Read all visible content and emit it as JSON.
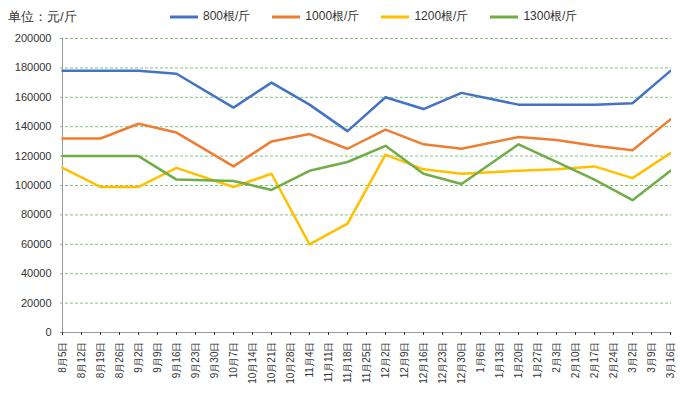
{
  "chart_data": {
    "type": "line",
    "ylabel": "单位：元/斤",
    "x": [
      "8月5日",
      "8月19日",
      "9月2日",
      "9月16日",
      "10月7日",
      "10月21日",
      "11月4日",
      "11月18日",
      "12月2日",
      "12月16日",
      "12月30日",
      "1月20日",
      "2月3日",
      "2月17日",
      "3月2日",
      "3月16日"
    ],
    "series": [
      {
        "name": "800根/斤",
        "color": "#4472c4",
        "values": [
          178000,
          178000,
          178000,
          176000,
          153000,
          170000,
          155000,
          137000,
          160000,
          152000,
          163000,
          155000,
          155000,
          155000,
          156000,
          178000
        ]
      },
      {
        "name": "1000根/斤",
        "color": "#ed7d31",
        "values": [
          132000,
          132000,
          142000,
          136000,
          113000,
          130000,
          135000,
          125000,
          138000,
          128000,
          125000,
          133000,
          131000,
          127000,
          124000,
          145000
        ]
      },
      {
        "name": "1200根/斤",
        "color": "#ffc000",
        "values": [
          112000,
          99000,
          99000,
          112000,
          99000,
          108000,
          60000,
          74000,
          121000,
          111000,
          108000,
          110000,
          111000,
          113000,
          105000,
          122000
        ]
      },
      {
        "name": "1300根/斤",
        "color": "#70ad47",
        "values": [
          120000,
          120000,
          120000,
          104000,
          103000,
          97000,
          110000,
          116000,
          127000,
          108000,
          101000,
          128000,
          116000,
          104000,
          90000,
          110000
        ]
      }
    ],
    "xticks": [
      "8月5日",
      "8月12日",
      "8月19日",
      "8月26日",
      "9月2日",
      "9月9日",
      "9月16日",
      "9月23日",
      "9月30日",
      "10月7日",
      "10月14日",
      "10月21日",
      "10月28日",
      "11月4日",
      "11月11日",
      "11月18日",
      "11月25日",
      "12月2日",
      "12月9日",
      "12月16日",
      "12月23日",
      "12月30日",
      "1月6日",
      "1月13日",
      "1月20日",
      "1月27日",
      "2月3日",
      "2月10日",
      "2月17日",
      "2月24日",
      "3月2日",
      "3月9日",
      "3月16日"
    ],
    "ylim": [
      0,
      200000
    ],
    "yticks": [
      0,
      20000,
      40000,
      60000,
      80000,
      100000,
      120000,
      140000,
      160000,
      180000,
      200000
    ],
    "grid": true,
    "legend": "top"
  }
}
